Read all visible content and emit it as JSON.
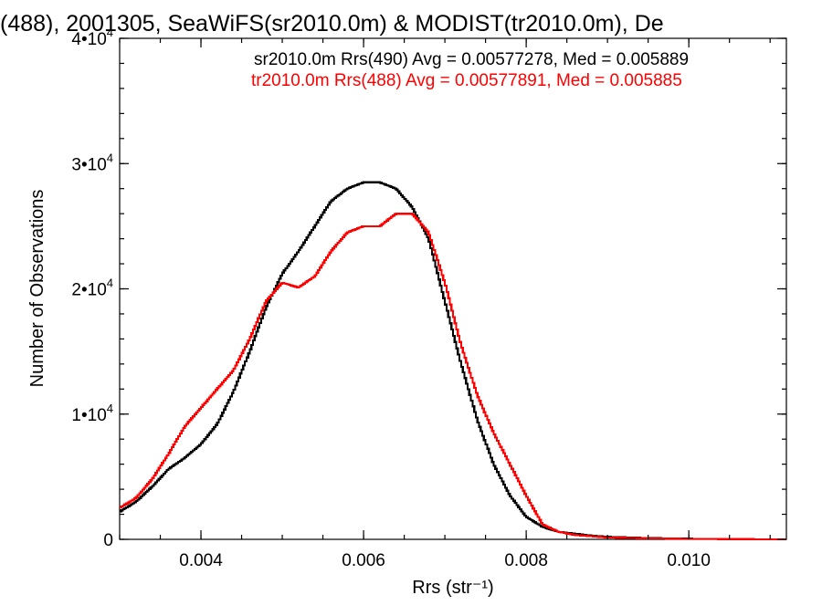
{
  "chart_data": {
    "type": "line",
    "title": "(488), 2001305, SeaWiFS(sr2010.0m) & MODIST(tr2010.0m), De",
    "xlabel": "Rrs (str⁻¹)",
    "ylabel": "Number of Observations",
    "xlim": [
      0.003,
      0.0112
    ],
    "ylim": [
      0,
      40000
    ],
    "grid": false,
    "legend_position": "top-right",
    "x_ticks": [
      {
        "value": 0.004,
        "label": "0.004"
      },
      {
        "value": 0.006,
        "label": "0.006"
      },
      {
        "value": 0.008,
        "label": "0.008"
      },
      {
        "value": 0.01,
        "label": "0.010"
      }
    ],
    "y_ticks": [
      {
        "value": 0,
        "base": "0",
        "exp": ""
      },
      {
        "value": 10000,
        "base": "1•10",
        "exp": "4"
      },
      {
        "value": 20000,
        "base": "2•10",
        "exp": "4"
      },
      {
        "value": 30000,
        "base": "3•10",
        "exp": "4"
      },
      {
        "value": 40000,
        "base": "4•10",
        "exp": "4"
      }
    ],
    "series": [
      {
        "name": "sr2010.0m Rrs(490) Avg = 0.00577278, Med = 0.005889",
        "color": "#000000",
        "x": [
          0.003,
          0.0032,
          0.0034,
          0.0036,
          0.0038,
          0.004,
          0.0042,
          0.0044,
          0.0046,
          0.0048,
          0.005,
          0.0052,
          0.0054,
          0.0056,
          0.0058,
          0.006,
          0.0062,
          0.0064,
          0.0066,
          0.0068,
          0.007,
          0.0072,
          0.0074,
          0.0076,
          0.0078,
          0.008,
          0.0082,
          0.0084,
          0.0086,
          0.0088,
          0.009,
          0.0095,
          0.01,
          0.0105,
          0.0112
        ],
        "y": [
          2200,
          3000,
          4200,
          5600,
          6500,
          7600,
          9200,
          11800,
          15000,
          18500,
          21200,
          23000,
          25000,
          27000,
          28000,
          28500,
          28500,
          28000,
          26500,
          24000,
          19000,
          14000,
          9500,
          6000,
          3500,
          1800,
          1000,
          600,
          450,
          300,
          200,
          100,
          50,
          20,
          0
        ]
      },
      {
        "name": "tr2010.0m Rrs(488) Avg = 0.00577891, Med = 0.005885",
        "color": "#ff0000",
        "x": [
          0.003,
          0.0032,
          0.0034,
          0.0036,
          0.0038,
          0.004,
          0.0042,
          0.0044,
          0.0046,
          0.0048,
          0.005,
          0.0052,
          0.0054,
          0.0056,
          0.0058,
          0.006,
          0.0062,
          0.0064,
          0.0066,
          0.0068,
          0.007,
          0.0072,
          0.0074,
          0.0076,
          0.0078,
          0.008,
          0.0082,
          0.0084,
          0.0086,
          0.0088,
          0.009,
          0.0095,
          0.01,
          0.0105,
          0.0112
        ],
        "y": [
          2500,
          3300,
          4800,
          6800,
          9000,
          10500,
          12000,
          13500,
          16000,
          19000,
          20500,
          20100,
          21000,
          23000,
          24500,
          25000,
          25000,
          26000,
          26000,
          24500,
          20500,
          15500,
          11500,
          8500,
          6000,
          3500,
          1200,
          600,
          350,
          250,
          150,
          80,
          40,
          20,
          0
        ]
      }
    ]
  }
}
